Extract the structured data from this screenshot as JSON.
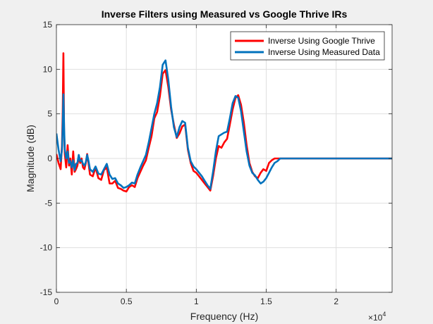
{
  "chart_data": {
    "type": "line",
    "title": "Inverse Filters using Measured vs Google Thrive IRs",
    "xlabel": "Frequency (Hz)",
    "ylabel": "Magnitude (dB)",
    "xlim": [
      0,
      24000
    ],
    "ylim": [
      -15,
      15
    ],
    "x_multiplier_label": "×10",
    "x_multiplier_exp": "4",
    "xticks": [
      0,
      5000,
      10000,
      15000,
      20000
    ],
    "xtick_labels": [
      "0",
      "0.5",
      "1",
      "1.5",
      "2"
    ],
    "yticks": [
      -15,
      -10,
      -5,
      0,
      5,
      10,
      15
    ],
    "ytick_labels": [
      "-15",
      "-10",
      "-5",
      "0",
      "5",
      "10",
      "15"
    ],
    "grid": true,
    "legend_position": "top-right",
    "series": [
      {
        "name": "Inverse Using Google Thrive",
        "color": "#ff0000",
        "x": [
          0,
          150,
          300,
          400,
          450,
          500,
          550,
          600,
          700,
          800,
          900,
          1000,
          1100,
          1200,
          1300,
          1400,
          1500,
          1600,
          1700,
          1800,
          1900,
          2000,
          2100,
          2200,
          2300,
          2400,
          2600,
          2800,
          3000,
          3200,
          3400,
          3600,
          3800,
          4000,
          4200,
          4400,
          4600,
          4800,
          5000,
          5200,
          5400,
          5600,
          5800,
          6000,
          6200,
          6400,
          6600,
          6800,
          7000,
          7200,
          7400,
          7600,
          7800,
          8000,
          8200,
          8400,
          8600,
          8800,
          9000,
          9200,
          9400,
          9600,
          9800,
          10000,
          10200,
          10400,
          10600,
          10800,
          11000,
          11200,
          11400,
          11600,
          11800,
          12000,
          12200,
          12400,
          12600,
          12800,
          13000,
          13200,
          13400,
          13600,
          13800,
          14000,
          14200,
          14400,
          14600,
          14800,
          15000,
          15200,
          15400,
          15600,
          15800,
          16000,
          24000
        ],
        "y": [
          0.5,
          -0.5,
          -1.2,
          1.5,
          5.0,
          11.8,
          3.0,
          0.5,
          -1.0,
          1.5,
          -0.8,
          0.0,
          -1.8,
          0.8,
          -1.5,
          -1.2,
          -0.8,
          0.2,
          -0.5,
          0.0,
          -1.0,
          -1.2,
          -0.5,
          0.5,
          -0.6,
          -1.8,
          -2.0,
          -1.0,
          -2.2,
          -2.4,
          -1.3,
          -1.0,
          -2.8,
          -2.8,
          -2.5,
          -3.3,
          -3.4,
          -3.6,
          -3.7,
          -3.2,
          -3.0,
          -3.2,
          -2.2,
          -1.5,
          -0.8,
          -0.2,
          1.2,
          2.5,
          4.5,
          5.2,
          7.0,
          9.5,
          9.9,
          8.0,
          5.5,
          3.8,
          2.3,
          2.8,
          3.6,
          3.8,
          1.0,
          -0.5,
          -1.4,
          -1.6,
          -2.0,
          -2.4,
          -2.8,
          -3.2,
          -3.6,
          -2.0,
          0.0,
          1.4,
          1.2,
          1.8,
          2.2,
          3.8,
          5.5,
          6.8,
          7.1,
          6.0,
          4.0,
          1.5,
          -0.5,
          -1.5,
          -2.0,
          -2.2,
          -1.6,
          -1.2,
          -1.4,
          -0.5,
          -0.2,
          0.0,
          0.0,
          0.0,
          0.0
        ]
      },
      {
        "name": "Inverse Using Measured Data",
        "color": "#0072bd",
        "x": [
          0,
          150,
          300,
          400,
          450,
          500,
          550,
          600,
          700,
          800,
          900,
          1000,
          1100,
          1200,
          1300,
          1400,
          1500,
          1600,
          1700,
          1800,
          1900,
          2000,
          2100,
          2200,
          2300,
          2400,
          2600,
          2800,
          3000,
          3200,
          3400,
          3600,
          3800,
          4000,
          4200,
          4400,
          4600,
          4800,
          5000,
          5200,
          5400,
          5600,
          5800,
          6000,
          6200,
          6400,
          6600,
          6800,
          7000,
          7200,
          7400,
          7600,
          7800,
          8000,
          8200,
          8400,
          8600,
          8800,
          9000,
          9200,
          9400,
          9600,
          9800,
          10000,
          10200,
          10400,
          10600,
          10800,
          11000,
          11200,
          11400,
          11600,
          11800,
          12000,
          12200,
          12400,
          12600,
          12800,
          13000,
          13200,
          13400,
          13600,
          13800,
          14000,
          14200,
          14400,
          14600,
          14800,
          15000,
          15200,
          15400,
          15600,
          15800,
          16000,
          16200,
          24000
        ],
        "y": [
          2.8,
          1.0,
          -0.3,
          1.0,
          3.5,
          7.2,
          3.5,
          1.0,
          0.0,
          0.8,
          -0.5,
          -0.3,
          -1.0,
          -0.2,
          -1.3,
          -0.6,
          -0.5,
          0.4,
          -0.3,
          -0.2,
          -0.6,
          -0.8,
          -0.4,
          0.4,
          -0.3,
          -1.2,
          -1.5,
          -0.9,
          -1.7,
          -1.8,
          -1.2,
          -0.6,
          -1.8,
          -2.3,
          -2.2,
          -2.8,
          -3.0,
          -3.3,
          -3.2,
          -3.0,
          -2.7,
          -2.8,
          -1.8,
          -1.0,
          -0.3,
          0.4,
          1.8,
          3.4,
          5.0,
          6.2,
          8.0,
          10.5,
          11.0,
          8.8,
          5.8,
          3.5,
          2.4,
          3.5,
          4.2,
          4.0,
          1.2,
          -0.3,
          -0.9,
          -1.2,
          -1.6,
          -2.0,
          -2.5,
          -3.0,
          -3.4,
          -1.5,
          0.8,
          2.5,
          2.7,
          2.9,
          3.0,
          4.5,
          6.2,
          7.0,
          6.8,
          5.3,
          3.0,
          0.8,
          -0.8,
          -1.6,
          -1.9,
          -2.4,
          -2.8,
          -2.6,
          -2.2,
          -1.6,
          -1.0,
          -0.5,
          -0.3,
          0.0,
          0.0,
          0.0
        ]
      }
    ]
  }
}
